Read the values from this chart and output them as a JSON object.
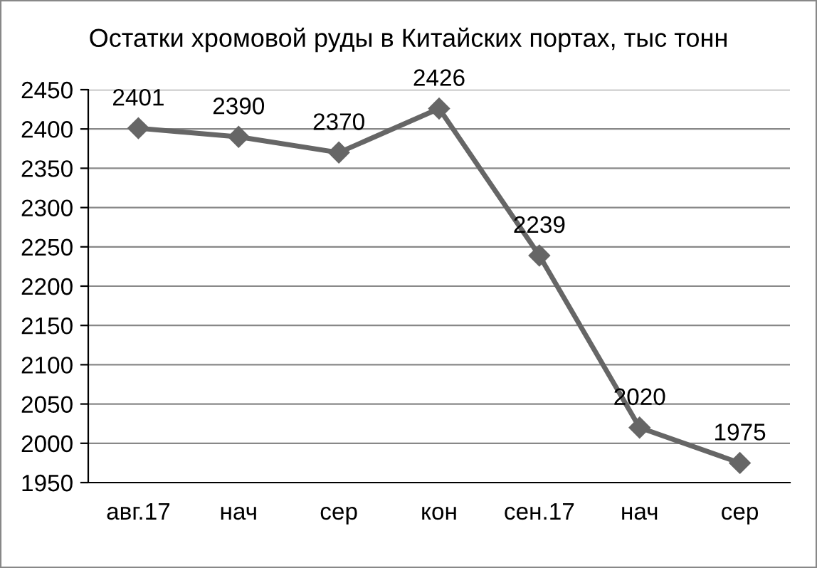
{
  "chart_data": {
    "type": "line",
    "title": "Остатки хромовой руды в Китайских портах, тыс тонн",
    "categories": [
      "авг.17",
      "нач",
      "сер",
      "кон",
      "сен.17",
      "нач",
      "сер"
    ],
    "series": [
      {
        "color": "#666666",
        "values": [
          2401,
          2390,
          2370,
          2426,
          2239,
          2020,
          1975
        ]
      }
    ],
    "ylim": [
      1950,
      2450
    ],
    "yticks": [
      1950,
      2000,
      2050,
      2100,
      2150,
      2200,
      2250,
      2300,
      2350,
      2400,
      2450
    ],
    "grid": "y",
    "marker": "diamond",
    "line_style": "solid",
    "data_labels": true
  }
}
